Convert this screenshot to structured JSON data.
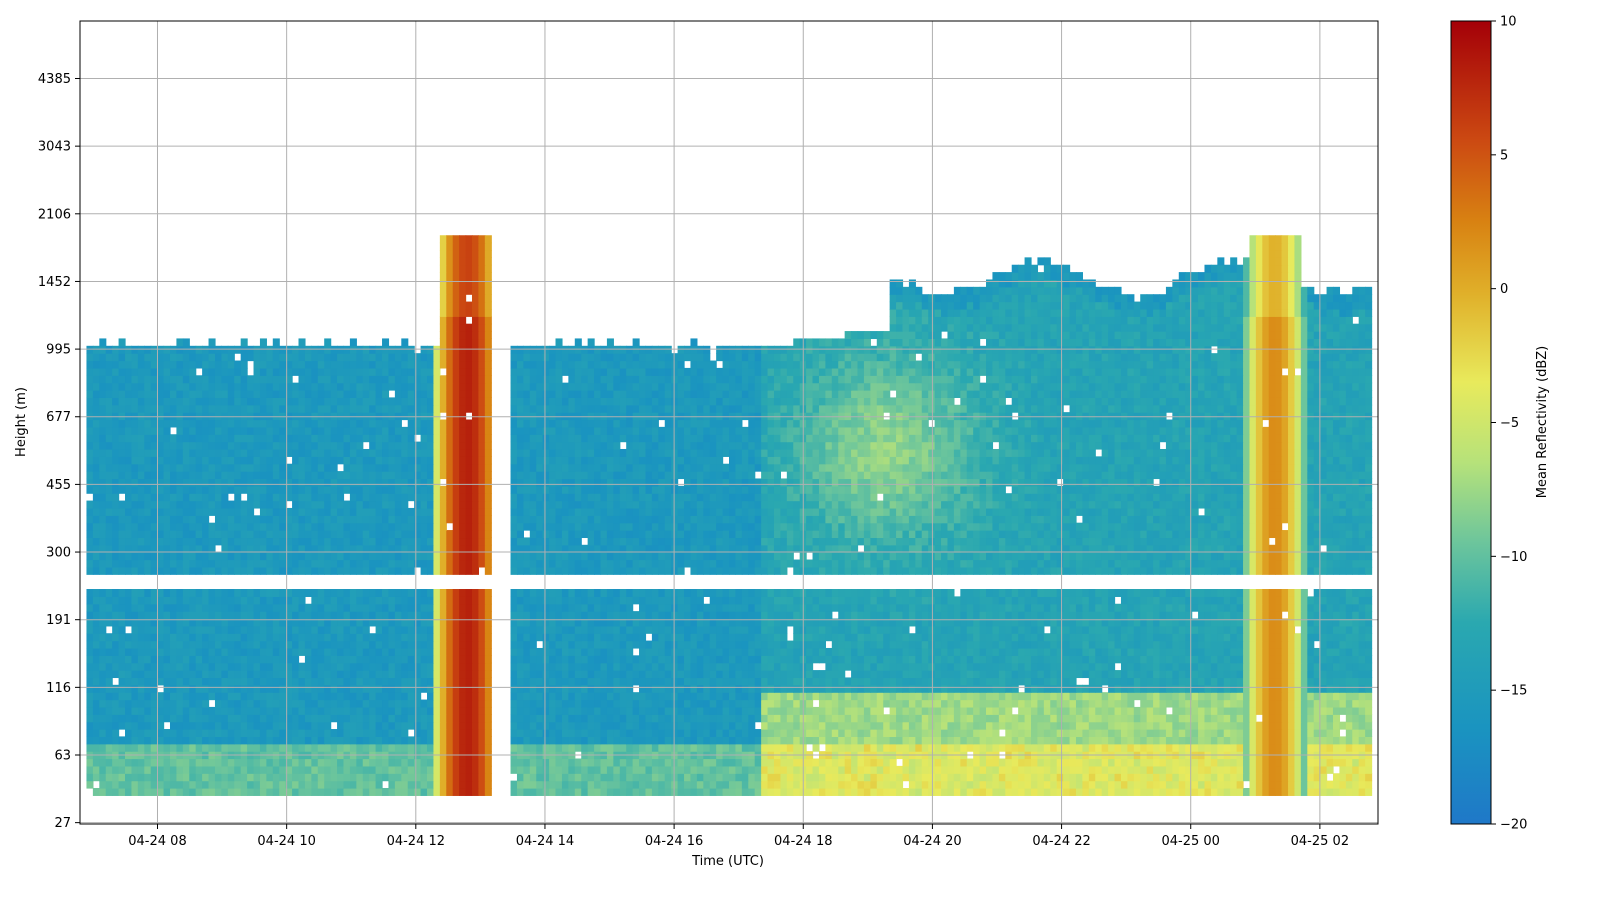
{
  "chart_data": {
    "type": "heatmap",
    "title": "",
    "xlabel": "Time (UTC)",
    "ylabel": "Height (m)",
    "x_ticks": [
      "04-24 08",
      "04-24 10",
      "04-24 12",
      "04-24 14",
      "04-24 16",
      "04-24 18",
      "04-24 20",
      "04-24 22",
      "04-25 00",
      "04-25 02"
    ],
    "x_range_hours": [
      6.8,
      26.9
    ],
    "x_tick_hours": [
      8,
      10,
      12,
      14,
      16,
      18,
      20,
      22,
      24,
      26
    ],
    "y_ticks": [
      "27",
      "63",
      "116",
      "191",
      "300",
      "455",
      "677",
      "995",
      "1452",
      "2106",
      "3043",
      "4385"
    ],
    "y_range_index": [
      -0.02,
      11.85
    ],
    "grid": true,
    "colorbar": {
      "label": "Mean Reflectivity (dBZ)",
      "min": -20,
      "max": 10,
      "ticks": [
        "10",
        "5",
        "0",
        "−5",
        "−10",
        "−15",
        "−20"
      ],
      "tick_values": [
        10,
        5,
        0,
        -5,
        -10,
        -15,
        -20
      ],
      "colormap": "Spectral_r"
    },
    "features": [
      {
        "name": "surface echo layer",
        "t_start": 6.9,
        "t_end": 26.8,
        "height_top_m": 70,
        "dbz": -9
      },
      {
        "name": "boundary layer cloud",
        "t_start": 6.9,
        "t_end": 17.3,
        "height_top_m": 1000,
        "dbz": -15
      },
      {
        "name": "precipitation band",
        "t_start": 12.4,
        "t_end": 13.2,
        "height_top_m": 1850,
        "dbz": 6
      },
      {
        "name": "precipitation band",
        "t_start": 24.9,
        "t_end": 25.7,
        "height_top_m": 1850,
        "dbz": 0
      },
      {
        "name": "cloud layer",
        "t_start": 17.3,
        "t_end": 26.8,
        "height_top_m": 1600,
        "dbz": -13
      }
    ],
    "data_gaps": [
      {
        "t_start": 13.2,
        "t_end": 13.45
      },
      {
        "height_low_m": 230,
        "height_high_m": 265
      }
    ]
  }
}
